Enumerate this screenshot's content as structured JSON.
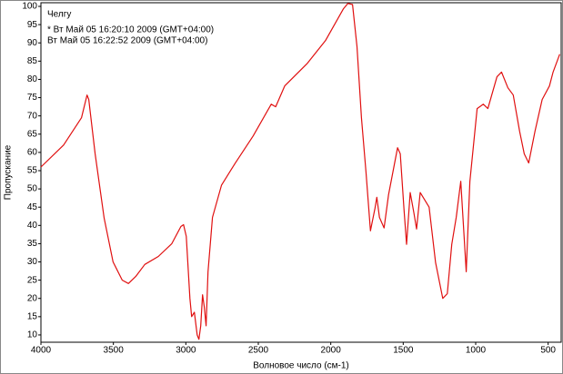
{
  "chart_data": {
    "type": "line",
    "title": "Челгу",
    "annotations": [
      "* Вт Май 05 16:20:10 2009 (GMT+04:00)",
      "Вт Май 05 16:22:52 2009 (GMT+04:00)"
    ],
    "x_label": "Волновое число (см-1)",
    "y_label": "Пропускание",
    "xlim": [
      4000,
      410
    ],
    "ylim": [
      8,
      101
    ],
    "xticks": [
      4000,
      3500,
      3000,
      2500,
      2000,
      1500,
      1000,
      500
    ],
    "yticks": [
      10,
      15,
      20,
      25,
      30,
      35,
      40,
      45,
      50,
      55,
      60,
      65,
      70,
      75,
      80,
      85,
      90,
      95,
      100
    ],
    "x": [
      4000,
      3844,
      3720,
      3682,
      3670,
      3626,
      3564,
      3502,
      3439,
      3396,
      3346,
      3283,
      3190,
      3097,
      3034,
      3016,
      2997,
      2972,
      2960,
      2941,
      2922,
      2910,
      2897,
      2885,
      2872,
      2860,
      2847,
      2816,
      2754,
      2660,
      2536,
      2411,
      2380,
      2318,
      2162,
      2037,
      1913,
      1882,
      1850,
      1819,
      1788,
      1757,
      1726,
      1695,
      1682,
      1664,
      1632,
      1601,
      1539,
      1520,
      1495,
      1477,
      1452,
      1427,
      1408,
      1383,
      1321,
      1277,
      1227,
      1196,
      1165,
      1134,
      1103,
      1084,
      1065,
      1040,
      990,
      947,
      916,
      853,
      822,
      778,
      741,
      697,
      665,
      634,
      591,
      541,
      491,
      466,
      420
    ],
    "series": [
      {
        "name": "",
        "color": "#e01010",
        "values": [
          56,
          62,
          69.5,
          75.7,
          74.5,
          59.6,
          42,
          30,
          25,
          24.1,
          26,
          29.3,
          31.5,
          35,
          39.7,
          40.2,
          37,
          20,
          15,
          16.2,
          10,
          8.8,
          12.5,
          21,
          17.5,
          12.5,
          27.3,
          42.2,
          51,
          57,
          64.5,
          73.2,
          72.5,
          78.2,
          84.4,
          90.6,
          99.3,
          100.8,
          100.5,
          89,
          69.5,
          54.6,
          38.5,
          44.7,
          47.7,
          42.2,
          39.3,
          48.4,
          61.3,
          59.6,
          44.7,
          34.8,
          49,
          43.5,
          39,
          49,
          45,
          29.8,
          20,
          21.3,
          34.8,
          42.2,
          52.1,
          39.7,
          27.3,
          52,
          72,
          73.2,
          72,
          80.7,
          82,
          77.7,
          75.7,
          65.8,
          59.6,
          57.1,
          65.8,
          74.5,
          78.2,
          82,
          86.9
        ]
      }
    ]
  }
}
